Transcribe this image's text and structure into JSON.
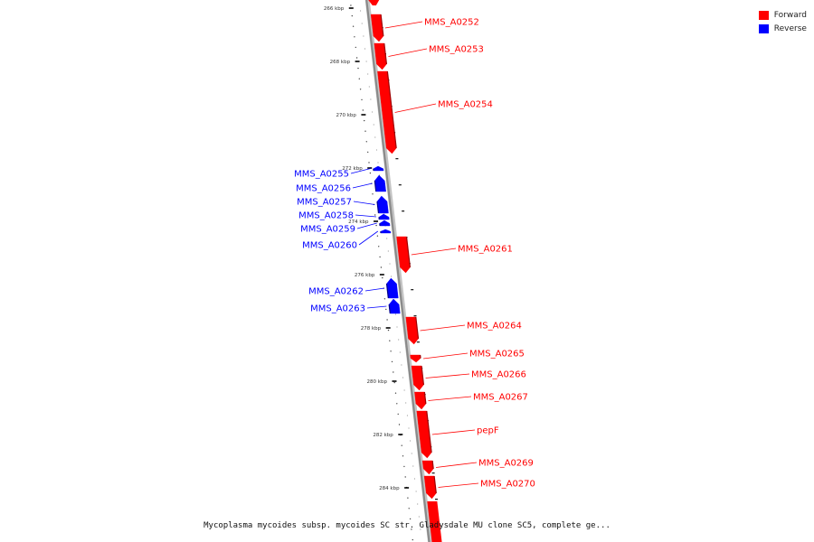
{
  "legend": [
    {
      "label": "Forward",
      "color": "#ff0000"
    },
    {
      "label": "Reverse",
      "color": "#0000ff"
    }
  ],
  "caption": "Mycoplasma mycoides subsp. mycoides SC str. Gladysdale MU clone SC5, complete ge...",
  "colors": {
    "forward": "#ff0000",
    "reverse": "#0000ff",
    "backbone": "#8a8a8a"
  },
  "ticks": [
    "266 kbp",
    "268 kbp",
    "270 kbp",
    "272 kbp",
    "274 kbp",
    "276 kbp",
    "278 kbp",
    "280 kbp",
    "282 kbp",
    "284 kbp"
  ],
  "genes": [
    {
      "label": "MMS_A0252",
      "strand": "forward"
    },
    {
      "label": "MMS_A0253",
      "strand": "forward"
    },
    {
      "label": "MMS_A0254",
      "strand": "forward"
    },
    {
      "label": "MMS_A0255",
      "strand": "reverse"
    },
    {
      "label": "MMS_A0256",
      "strand": "reverse"
    },
    {
      "label": "MMS_A0257",
      "strand": "reverse"
    },
    {
      "label": "MMS_A0258",
      "strand": "reverse"
    },
    {
      "label": "MMS_A0259",
      "strand": "reverse"
    },
    {
      "label": "MMS_A0260",
      "strand": "reverse"
    },
    {
      "label": "MMS_A0261",
      "strand": "forward"
    },
    {
      "label": "MMS_A0262",
      "strand": "reverse"
    },
    {
      "label": "MMS_A0263",
      "strand": "reverse"
    },
    {
      "label": "MMS_A0264",
      "strand": "forward"
    },
    {
      "label": "MMS_A0265",
      "strand": "forward"
    },
    {
      "label": "MMS_A0266",
      "strand": "forward"
    },
    {
      "label": "MMS_A0267",
      "strand": "forward"
    },
    {
      "label": "pepF",
      "strand": "forward"
    },
    {
      "label": "MMS_A0269",
      "strand": "forward"
    },
    {
      "label": "MMS_A0270",
      "strand": "forward"
    }
  ]
}
